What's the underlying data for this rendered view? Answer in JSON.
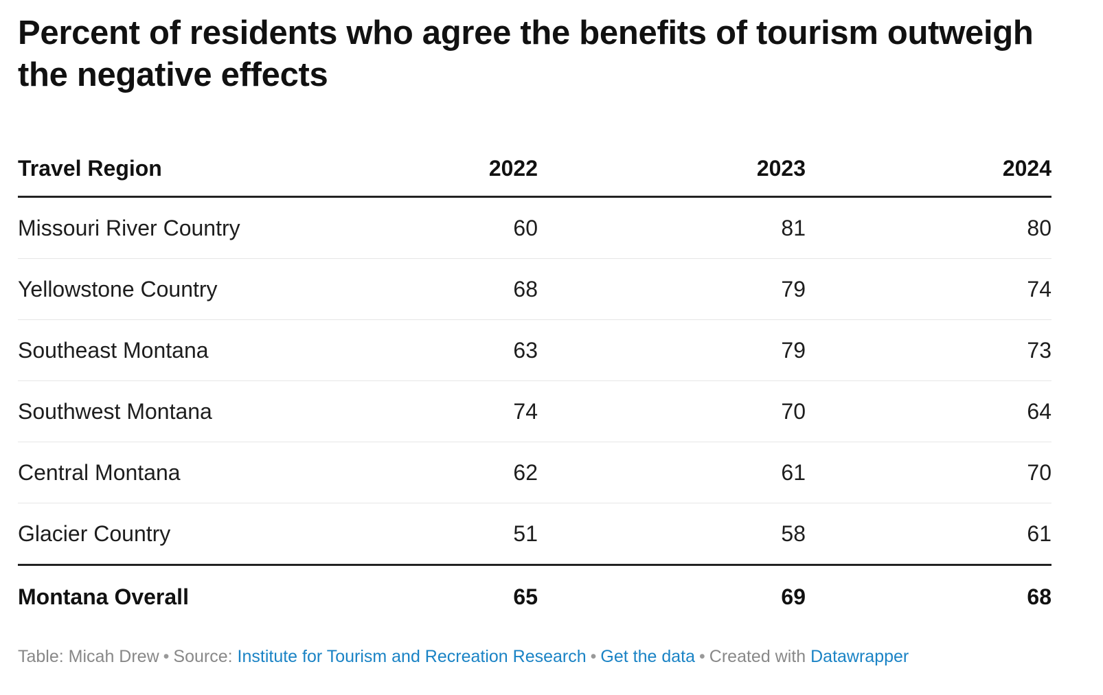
{
  "title": "Percent of residents who agree the benefits of tourism outweigh the negative effects",
  "chart_data": {
    "type": "table",
    "columns": [
      "Travel Region",
      "2022",
      "2023",
      "2024"
    ],
    "rows": [
      {
        "region": "Missouri River Country",
        "values": [
          "60",
          "81",
          "80"
        ]
      },
      {
        "region": "Yellowstone Country",
        "values": [
          "68",
          "79",
          "74"
        ]
      },
      {
        "region": "Southeast Montana",
        "values": [
          "63",
          "79",
          "73"
        ]
      },
      {
        "region": "Southwest Montana",
        "values": [
          "74",
          "70",
          "64"
        ]
      },
      {
        "region": "Central Montana",
        "values": [
          "62",
          "61",
          "70"
        ]
      },
      {
        "region": "Glacier Country",
        "values": [
          "51",
          "58",
          "61"
        ]
      }
    ],
    "total": {
      "region": "Montana Overall",
      "values": [
        "65",
        "69",
        "68"
      ]
    }
  },
  "footer": {
    "table_prefix": "Table: Micah Drew",
    "source_prefix": "Source:",
    "source_link": "Institute for Tourism and Recreation Research",
    "data_link": "Get the data",
    "created_prefix": "Created with",
    "created_link": "Datawrapper",
    "separator": "•",
    "link_color": "#1a83c5"
  }
}
